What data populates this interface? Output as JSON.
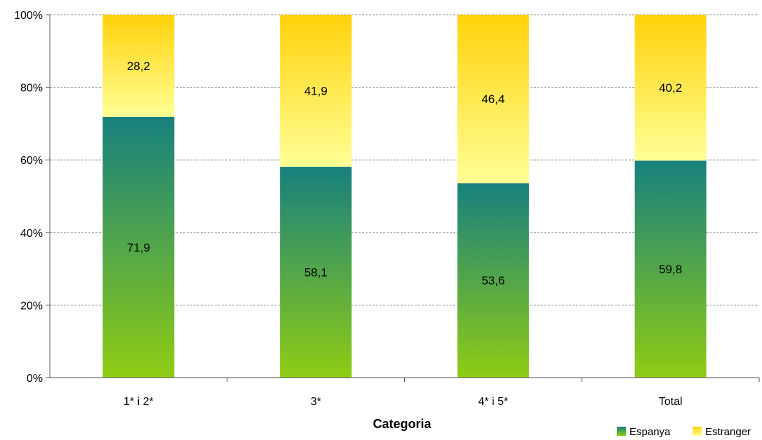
{
  "chart_data": {
    "type": "bar",
    "stacked": true,
    "percent": true,
    "categories": [
      "1* i 2*",
      "3*",
      "4* i 5*",
      "Total"
    ],
    "series": [
      {
        "name": "Espanya",
        "values": [
          71.9,
          58.1,
          53.6,
          59.8
        ],
        "color_top": "#17807e",
        "color_bottom": "#8fcc14"
      },
      {
        "name": "Estranger",
        "values": [
          28.2,
          41.9,
          46.4,
          40.2
        ],
        "color_top": "#ffd20a",
        "color_bottom": "#ffff96"
      }
    ],
    "xlabel": "Categoria",
    "ylabel": "",
    "ylim": [
      0,
      100
    ],
    "yticks": [
      "0%",
      "20%",
      "40%",
      "60%",
      "80%",
      "100%"
    ],
    "grid": true,
    "legend_position": "bottom-right"
  }
}
